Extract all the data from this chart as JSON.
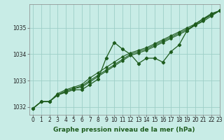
{
  "title": "Graphe pression niveau de la mer (hPa)",
  "background_color": "#c8ece6",
  "plot_bg_color": "#c8ece6",
  "grid_color": "#9dcfc7",
  "line_color": "#1e5c1e",
  "xlim": [
    -0.5,
    23
  ],
  "ylim": [
    1031.7,
    1035.9
  ],
  "yticks": [
    1032,
    1033,
    1034,
    1035
  ],
  "xticks": [
    0,
    1,
    2,
    3,
    4,
    5,
    6,
    7,
    8,
    9,
    10,
    11,
    12,
    13,
    14,
    15,
    16,
    17,
    18,
    19,
    20,
    21,
    22,
    23
  ],
  "series": [
    [
      1031.95,
      1032.2,
      1032.2,
      1032.45,
      1032.55,
      1032.65,
      1032.65,
      1032.85,
      1033.05,
      1033.85,
      1034.45,
      1034.2,
      1034.0,
      1033.65,
      1033.85,
      1033.85,
      1033.7,
      1034.1,
      1034.35,
      1034.9,
      1035.15,
      1035.35,
      1035.5,
      1035.65
    ],
    [
      1031.95,
      1032.2,
      1032.2,
      1032.45,
      1032.6,
      1032.7,
      1032.75,
      1032.95,
      1033.15,
      1033.35,
      1033.55,
      1033.75,
      1033.95,
      1034.05,
      1034.15,
      1034.3,
      1034.45,
      1034.6,
      1034.75,
      1034.9,
      1035.1,
      1035.25,
      1035.45,
      1035.65
    ],
    [
      1031.95,
      1032.2,
      1032.2,
      1032.45,
      1032.6,
      1032.7,
      1032.8,
      1033.0,
      1033.2,
      1033.4,
      1033.6,
      1033.8,
      1034.0,
      1034.1,
      1034.2,
      1034.35,
      1034.5,
      1034.65,
      1034.8,
      1034.95,
      1035.1,
      1035.3,
      1035.5,
      1035.65
    ],
    [
      1031.95,
      1032.2,
      1032.2,
      1032.5,
      1032.65,
      1032.75,
      1032.85,
      1033.1,
      1033.3,
      1033.5,
      1033.7,
      1033.9,
      1034.05,
      1034.15,
      1034.25,
      1034.4,
      1034.55,
      1034.7,
      1034.85,
      1035.0,
      1035.15,
      1035.35,
      1035.55,
      1035.65
    ]
  ],
  "tick_fontsize": 5.5,
  "title_fontsize": 6.5
}
